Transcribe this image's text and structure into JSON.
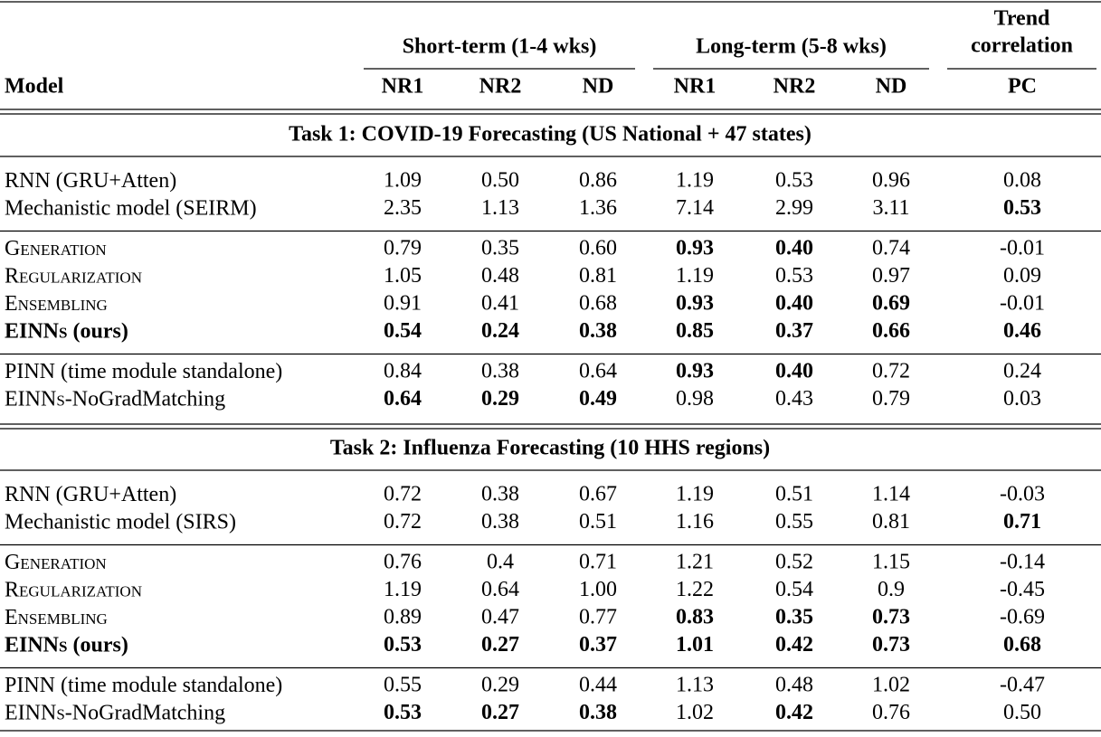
{
  "header": {
    "groups": [
      {
        "label": "Short-term (1-4 wks)"
      },
      {
        "label": "Long-term (5-8 wks)"
      },
      {
        "label": [
          "Trend",
          "correlation"
        ]
      }
    ],
    "columns": [
      "Model",
      "NR1",
      "NR2",
      "ND",
      "NR1",
      "NR2",
      "ND",
      "PC"
    ]
  },
  "sections": [
    {
      "title": "Task 1: COVID-19 Forecasting (US National + 47 states)",
      "groups": [
        {
          "rows": [
            {
              "model": [
                {
                  "text": "RNN (GRU+Atten)"
                }
              ],
              "values": [
                "1.09",
                "0.50",
                "0.86",
                "1.19",
                "0.53",
                "0.96",
                "0.08"
              ],
              "bold": [
                false,
                false,
                false,
                false,
                false,
                false,
                false
              ]
            },
            {
              "model": [
                {
                  "text": "Mechanistic model (SEIRM)"
                }
              ],
              "values": [
                "2.35",
                "1.13",
                "1.36",
                "7.14",
                "2.99",
                "3.11",
                "0.53"
              ],
              "bold": [
                false,
                false,
                false,
                false,
                false,
                false,
                true
              ]
            }
          ]
        },
        {
          "rows": [
            {
              "model": [
                {
                  "text": "Generation",
                  "smallcaps": true
                }
              ],
              "values": [
                "0.79",
                "0.35",
                "0.60",
                "0.93",
                "0.40",
                "0.74",
                "-0.01"
              ],
              "bold": [
                false,
                false,
                false,
                true,
                true,
                false,
                false
              ]
            },
            {
              "model": [
                {
                  "text": "Regularization",
                  "smallcaps": true
                }
              ],
              "values": [
                "1.05",
                "0.48",
                "0.81",
                "1.19",
                "0.53",
                "0.97",
                "0.09"
              ],
              "bold": [
                false,
                false,
                false,
                false,
                false,
                false,
                false
              ]
            },
            {
              "model": [
                {
                  "text": "Ensembling",
                  "smallcaps": true
                }
              ],
              "values": [
                "0.91",
                "0.41",
                "0.68",
                "0.93",
                "0.40",
                "0.69",
                "-0.01"
              ],
              "bold": [
                false,
                false,
                false,
                true,
                true,
                true,
                false
              ]
            },
            {
              "model": [
                {
                  "text": "EINN",
                  "bold": true
                },
                {
                  "text": "s",
                  "smallcaps": true,
                  "bold": true
                },
                {
                  "text": " (ours)",
                  "bold": true
                }
              ],
              "values": [
                "0.54",
                "0.24",
                "0.38",
                "0.85",
                "0.37",
                "0.66",
                "0.46"
              ],
              "bold": [
                true,
                true,
                true,
                true,
                true,
                true,
                true
              ]
            }
          ]
        },
        {
          "rows": [
            {
              "model": [
                {
                  "text": "PINN (time module standalone)"
                }
              ],
              "values": [
                "0.84",
                "0.38",
                "0.64",
                "0.93",
                "0.40",
                "0.72",
                "0.24"
              ],
              "bold": [
                false,
                false,
                false,
                true,
                true,
                false,
                false
              ]
            },
            {
              "model": [
                {
                  "text": "EINN"
                },
                {
                  "text": "s",
                  "smallcaps": true
                },
                {
                  "text": "-NoGradMatching"
                }
              ],
              "values": [
                "0.64",
                "0.29",
                "0.49",
                "0.98",
                "0.43",
                "0.79",
                "0.03"
              ],
              "bold": [
                true,
                true,
                true,
                false,
                false,
                false,
                false
              ]
            }
          ]
        }
      ]
    },
    {
      "title": "Task 2: Influenza Forecasting (10 HHS regions)",
      "groups": [
        {
          "rows": [
            {
              "model": [
                {
                  "text": "RNN (GRU+Atten)"
                }
              ],
              "values": [
                "0.72",
                "0.38",
                "0.67",
                "1.19",
                "0.51",
                "1.14",
                "-0.03"
              ],
              "bold": [
                false,
                false,
                false,
                false,
                false,
                false,
                false
              ]
            },
            {
              "model": [
                {
                  "text": "Mechanistic model (SIRS)"
                }
              ],
              "values": [
                "0.72",
                "0.38",
                "0.51",
                "1.16",
                "0.55",
                "0.81",
                "0.71"
              ],
              "bold": [
                false,
                false,
                false,
                false,
                false,
                false,
                true
              ]
            }
          ]
        },
        {
          "rows": [
            {
              "model": [
                {
                  "text": "Generation",
                  "smallcaps": true
                }
              ],
              "values": [
                "0.76",
                "0.4",
                "0.71",
                "1.21",
                "0.52",
                "1.15",
                "-0.14"
              ],
              "bold": [
                false,
                false,
                false,
                false,
                false,
                false,
                false
              ]
            },
            {
              "model": [
                {
                  "text": "Regularization",
                  "smallcaps": true
                }
              ],
              "values": [
                "1.19",
                "0.64",
                "1.00",
                "1.22",
                "0.54",
                "0.9",
                "-0.45"
              ],
              "bold": [
                false,
                false,
                false,
                false,
                false,
                false,
                false
              ]
            },
            {
              "model": [
                {
                  "text": "Ensembling",
                  "smallcaps": true
                }
              ],
              "values": [
                "0.89",
                "0.47",
                "0.77",
                "0.83",
                "0.35",
                "0.73",
                "-0.69"
              ],
              "bold": [
                false,
                false,
                false,
                true,
                true,
                true,
                false
              ]
            },
            {
              "model": [
                {
                  "text": "EINN",
                  "bold": true
                },
                {
                  "text": "s",
                  "smallcaps": true,
                  "bold": true
                },
                {
                  "text": " (ours)",
                  "bold": true
                }
              ],
              "values": [
                "0.53",
                "0.27",
                "0.37",
                "1.01",
                "0.42",
                "0.73",
                "0.68"
              ],
              "bold": [
                true,
                true,
                true,
                true,
                true,
                true,
                true
              ]
            }
          ]
        },
        {
          "rows": [
            {
              "model": [
                {
                  "text": "PINN (time module standalone)"
                }
              ],
              "values": [
                "0.55",
                "0.29",
                "0.44",
                "1.13",
                "0.48",
                "1.02",
                "-0.47"
              ],
              "bold": [
                false,
                false,
                false,
                false,
                false,
                false,
                false
              ]
            },
            {
              "model": [
                {
                  "text": "EINN"
                },
                {
                  "text": "s",
                  "smallcaps": true
                },
                {
                  "text": "-NoGradMatching"
                }
              ],
              "values": [
                "0.53",
                "0.27",
                "0.38",
                "1.02",
                "0.42",
                "0.76",
                "0.50"
              ],
              "bold": [
                true,
                true,
                true,
                false,
                true,
                false,
                false
              ]
            }
          ]
        }
      ]
    }
  ]
}
